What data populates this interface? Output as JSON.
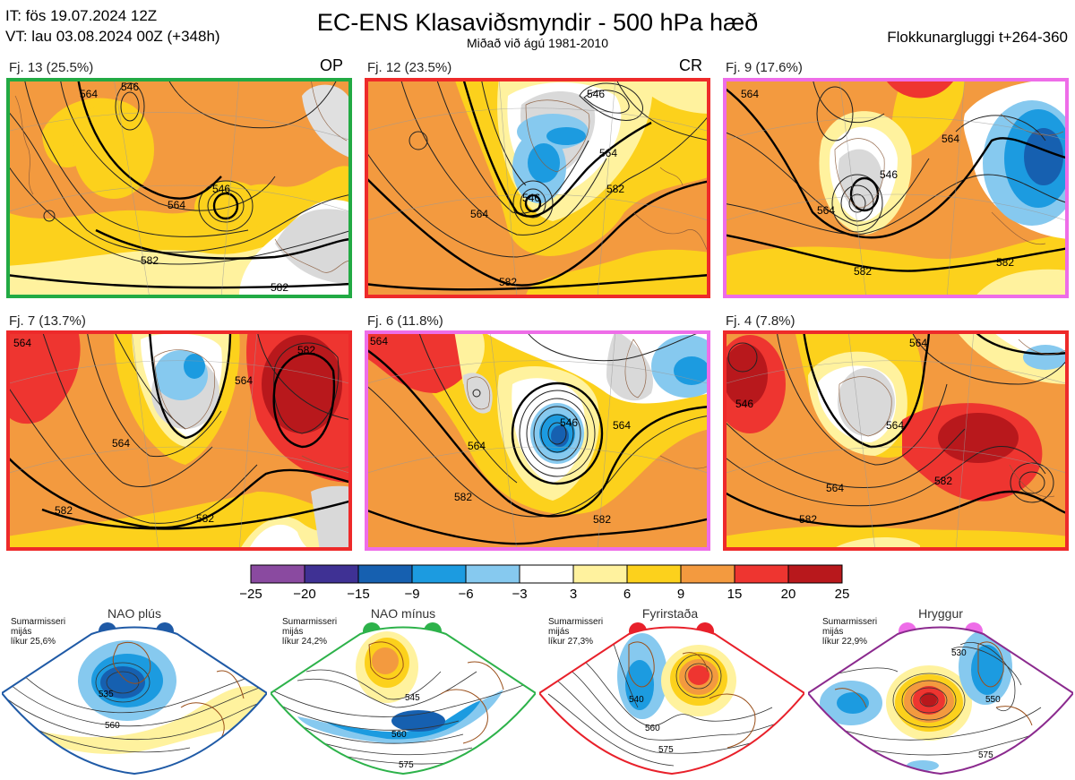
{
  "header": {
    "init_time": "IT: fös 19.07.2024 12Z",
    "valid_time": "VT: lau 03.08.2024 00Z  (+348h)",
    "title": "EC-ENS Klasaviðsmyndir - 500 hPa hæð",
    "subtitle": "Miðað við ágú 1981-2010",
    "window": "Flokkunargluggi t+264-360"
  },
  "clusters": [
    {
      "label": "Fj. 13 (25.5%)",
      "tag": "OP",
      "frame_color": "#22aa44"
    },
    {
      "label": "Fj. 12 (23.5%)",
      "tag": "CR",
      "frame_color": "#ee2a2a"
    },
    {
      "label": "Fj. 9 (17.6%)",
      "tag": "",
      "frame_color": "#ee6de8"
    },
    {
      "label": "Fj. 7 (13.7%)",
      "tag": "",
      "frame_color": "#ee2a2a"
    },
    {
      "label": "Fj. 6 (11.8%)",
      "tag": "",
      "frame_color": "#ee6de8"
    },
    {
      "label": "Fj. 4 (7.8%)",
      "tag": "",
      "frame_color": "#ee2a2a"
    }
  ],
  "contour_labels": {
    "p0": [
      "546",
      "546",
      "564",
      "582",
      "582",
      "564"
    ],
    "p1": [
      "546",
      "564",
      "582",
      "564",
      "582",
      "546"
    ],
    "p2": [
      "564",
      "546",
      "564",
      "582",
      "582",
      "564"
    ],
    "p3": [
      "582",
      "564",
      "582",
      "582",
      "564",
      "564"
    ],
    "p4": [
      "564",
      "546",
      "564",
      "582",
      "582",
      "564"
    ],
    "p5": [
      "564",
      "546",
      "564",
      "582",
      "582",
      "564"
    ]
  },
  "colorbar": {
    "ticks": [
      "−25",
      "−20",
      "−15",
      "−9",
      "−6",
      "−3",
      "3",
      "6",
      "9",
      "15",
      "20",
      "25"
    ],
    "colors": [
      "#8a4aa0",
      "#3f3194",
      "#1660b0",
      "#1c9be0",
      "#86c9ef",
      "#ffffff",
      "#fff29e",
      "#fcd11c",
      "#f39a3f",
      "#ee3530",
      "#b8181c"
    ]
  },
  "regimes": [
    {
      "name": "NAO plús",
      "season": [
        "Sumarmisseri",
        "mijás",
        "líkur 25,6%"
      ],
      "color": "#1f5aa6",
      "contours": [
        "535",
        "560"
      ]
    },
    {
      "name": "NAO mínus",
      "season": [
        "Sumarmisseri",
        "mijás",
        "líkur 24,2%"
      ],
      "color": "#2db24a",
      "contours": [
        "545",
        "560",
        "575"
      ]
    },
    {
      "name": "Fyrirstaða",
      "season": [
        "Sumarmisseri",
        "mijás",
        "líkur 27,3%"
      ],
      "color": "#e8202a",
      "contours": [
        "540",
        "560",
        "575"
      ]
    },
    {
      "name": "Hryggur",
      "season": [
        "Sumarmisseri",
        "mijás",
        "líkur 22,9%"
      ],
      "color": "#8b2a8e",
      "contours": [
        "530",
        "550",
        "575"
      ]
    }
  ],
  "chart_data": {
    "type": "heatmap",
    "title": "EC-ENS Klasaviðsmyndir - 500 hPa hæð",
    "subtitle": "Miðað við ágú 1981-2010",
    "panels": [
      "Fj. 13 (25.5%)",
      "Fj. 12 (23.5%)",
      "Fj. 9 (17.6%)",
      "Fj. 7 (13.7%)",
      "Fj. 6 (11.8%)",
      "Fj. 4 (7.8%)"
    ],
    "probabilities_percent": [
      25.5,
      23.5,
      17.6,
      13.7,
      11.8,
      7.8
    ],
    "anomaly_bins": [
      -25,
      -20,
      -15,
      -9,
      -6,
      -3,
      3,
      6,
      9,
      15,
      20,
      25
    ],
    "contour_levels_dam": [
      546,
      564,
      582
    ],
    "regimes": [
      {
        "name": "NAO plús",
        "probability_percent": 25.6
      },
      {
        "name": "NAO mínus",
        "probability_percent": 24.2
      },
      {
        "name": "Fyrirstaða",
        "probability_percent": 27.3
      },
      {
        "name": "Hryggur",
        "probability_percent": 22.9
      }
    ]
  }
}
